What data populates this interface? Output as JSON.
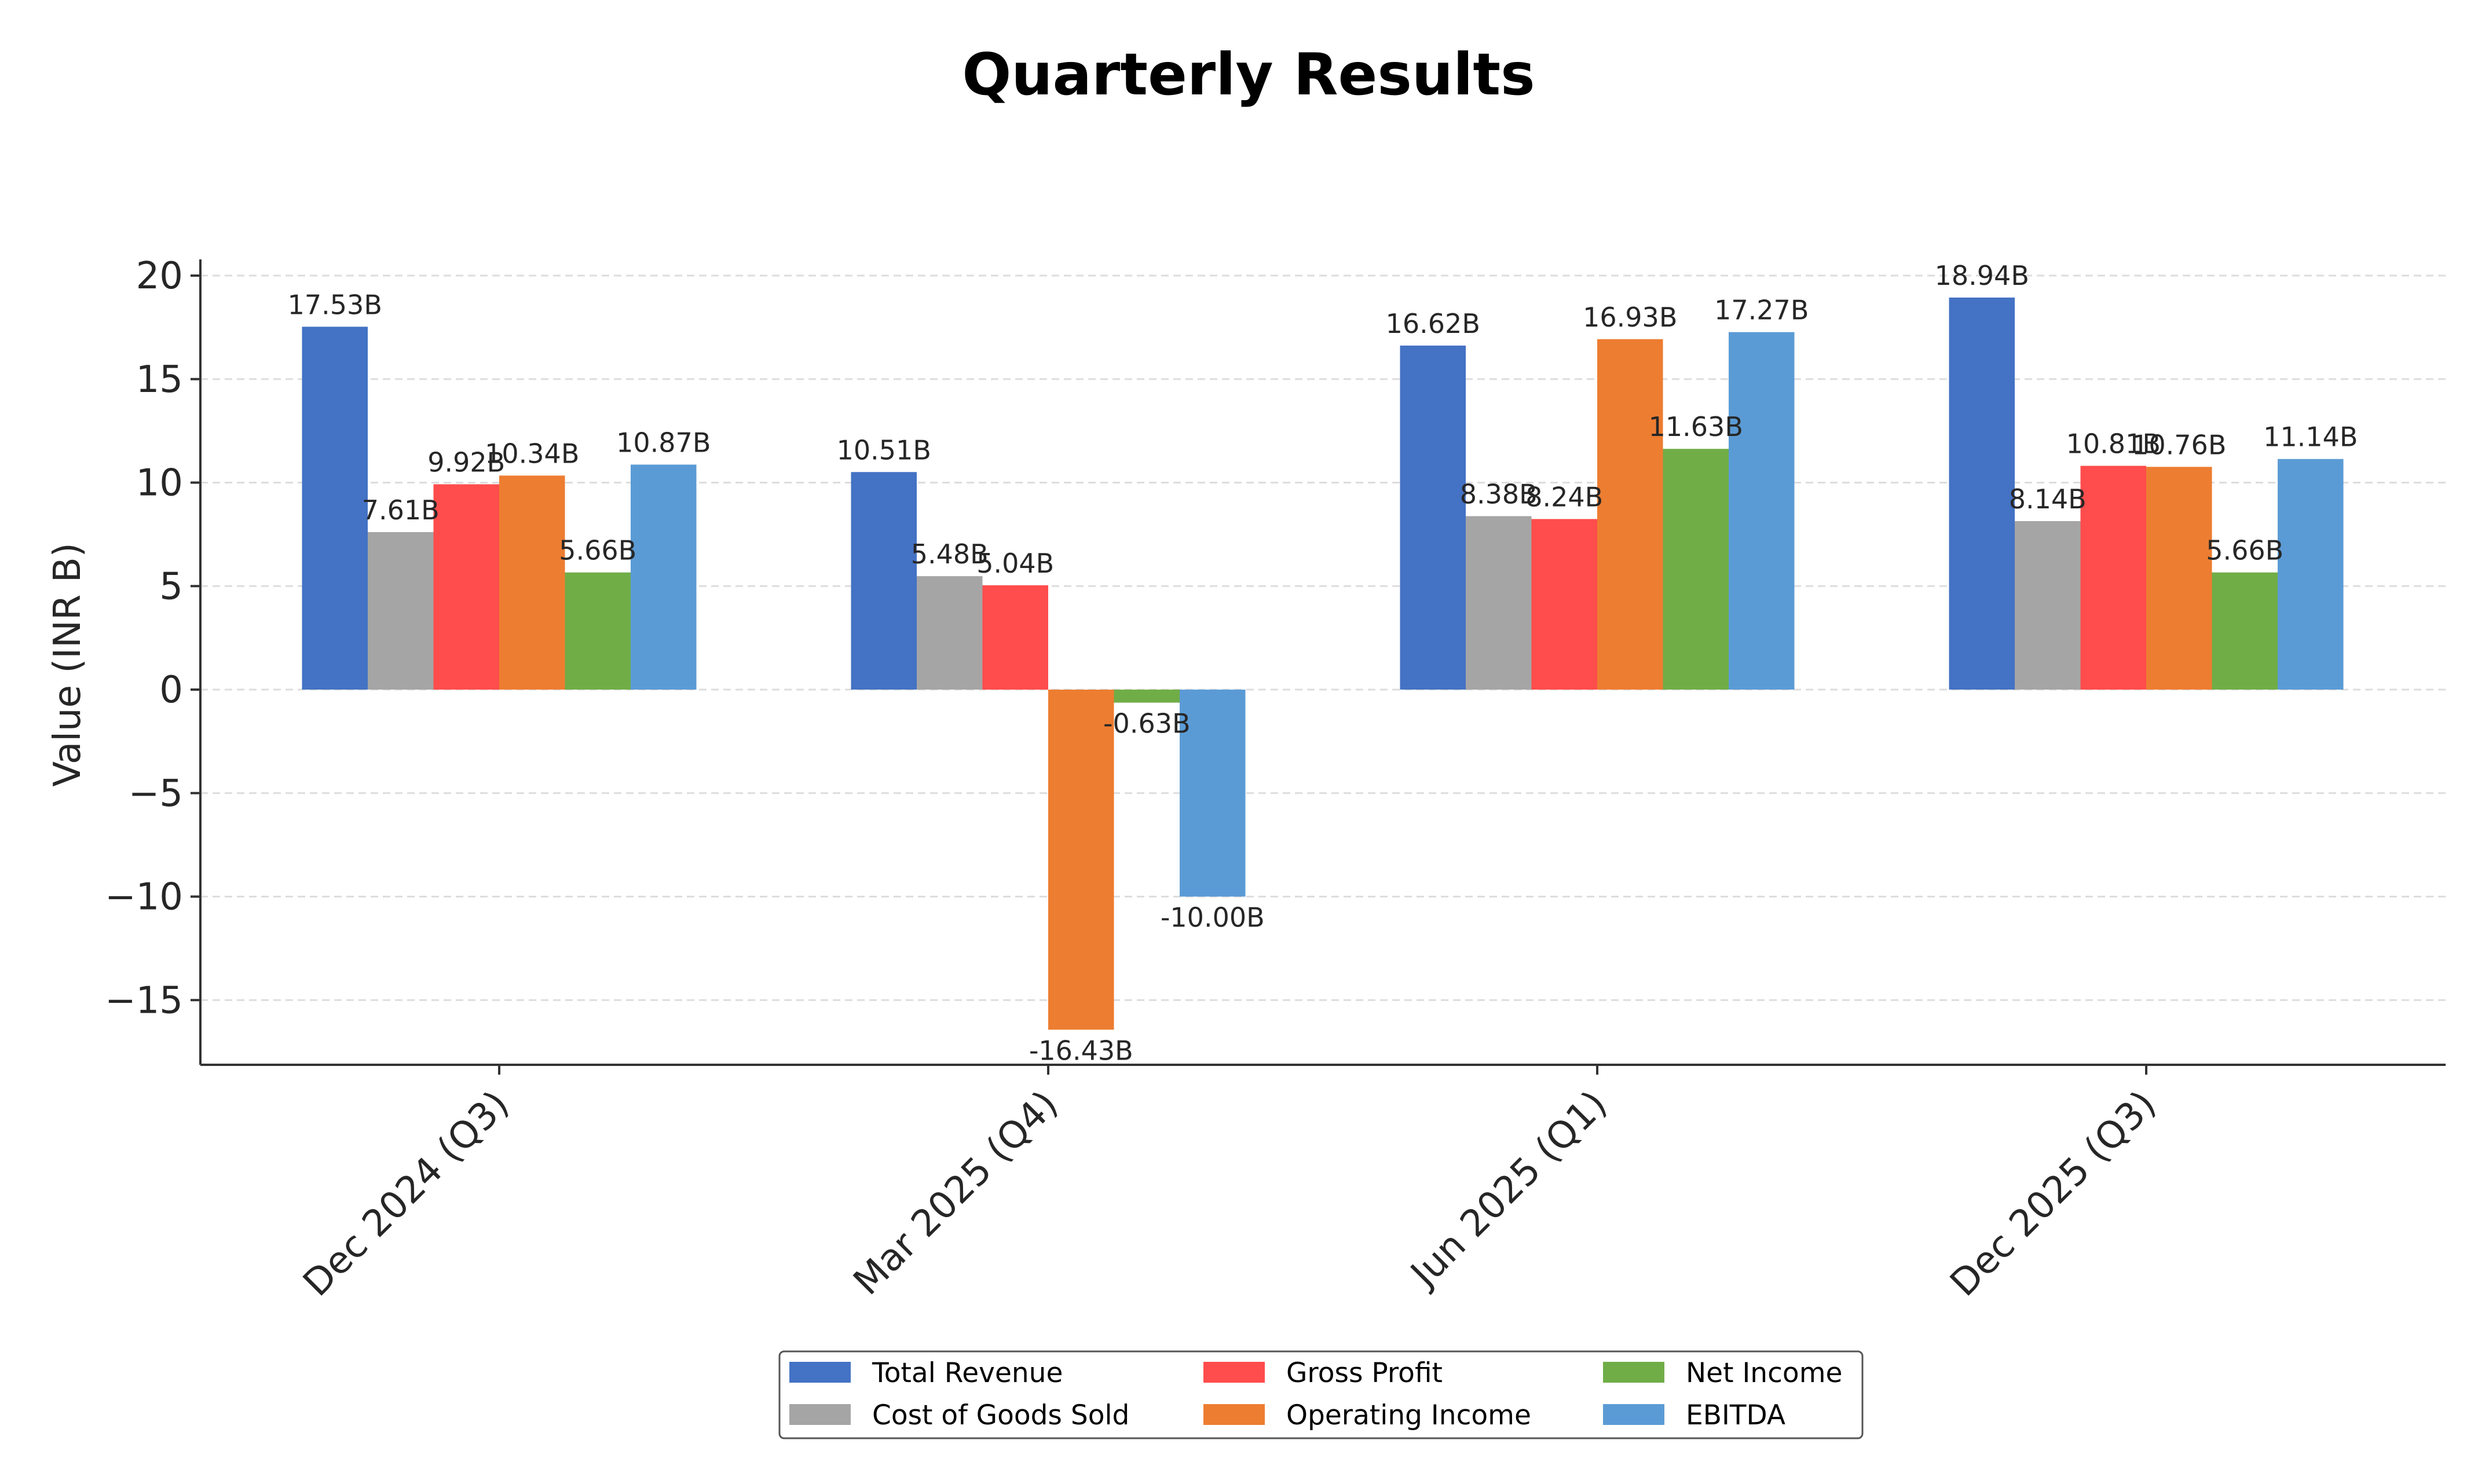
{
  "chart_data": {
    "type": "bar",
    "title": "Quarterly Results",
    "xlabel": "",
    "ylabel": "Value (INR B)",
    "categories": [
      "Dec 2024 (Q3)",
      "Mar 2025 (Q4)",
      "Jun 2025 (Q1)",
      "Dec 2025 (Q3)"
    ],
    "ylim": [
      -18,
      20.7
    ],
    "yticks": [
      -15,
      -10,
      -5,
      0,
      5,
      10,
      15,
      20
    ],
    "ytick_labels": [
      "−15",
      "−10",
      "−5",
      "0",
      "5",
      "10",
      "15",
      "20"
    ],
    "grid": true,
    "legend_position": "bottom-center",
    "series": [
      {
        "name": "Total Revenue",
        "color": "#4472C4",
        "values": [
          17.53,
          10.51,
          16.62,
          18.94
        ],
        "labels": [
          "17.53B",
          "10.51B",
          "16.62B",
          "18.94B"
        ]
      },
      {
        "name": "Cost of Goods Sold",
        "color": "#A5A5A5",
        "values": [
          7.61,
          5.48,
          8.38,
          8.14
        ],
        "labels": [
          "7.61B",
          "5.48B",
          "8.38B",
          "8.14B"
        ]
      },
      {
        "name": "Gross Profit",
        "color": "#FF4C4C",
        "values": [
          9.92,
          5.04,
          8.24,
          10.81
        ],
        "labels": [
          "9.92B",
          "5.04B",
          "8.24B",
          "10.81B"
        ]
      },
      {
        "name": "Operating Income",
        "color": "#ED7D31",
        "values": [
          10.34,
          -16.43,
          16.93,
          10.76
        ],
        "labels": [
          "10.34B",
          "-16.43B",
          "16.93B",
          "10.76B"
        ]
      },
      {
        "name": "Net Income",
        "color": "#70AD47",
        "values": [
          5.66,
          -0.63,
          11.63,
          5.66
        ],
        "labels": [
          "5.66B",
          "-0.63B",
          "11.63B",
          "5.66B"
        ]
      },
      {
        "name": "EBITDA",
        "color": "#5B9BD5",
        "values": [
          10.87,
          -10.0,
          17.27,
          11.14
        ],
        "labels": [
          "10.87B",
          "-10.00B",
          "17.27B",
          "11.14B"
        ]
      }
    ]
  }
}
